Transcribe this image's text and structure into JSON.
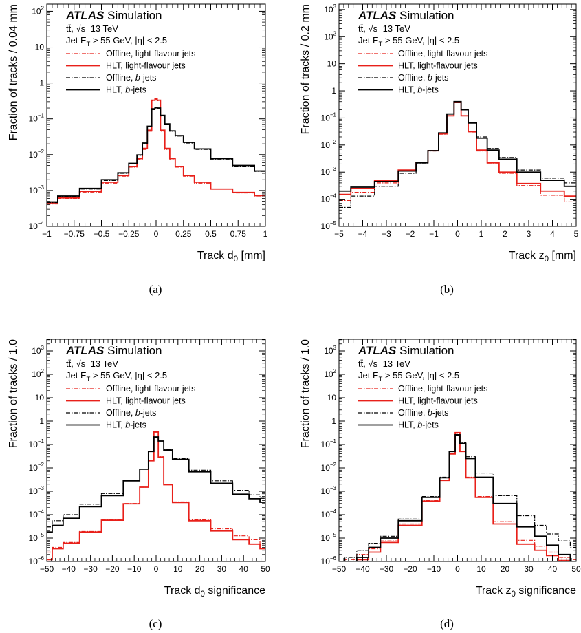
{
  "figure": {
    "colors": {
      "offline_light": "#e8201a",
      "hlt_light": "#e8201a",
      "offline_b": "#000000",
      "hlt_b": "#000000"
    },
    "legend_entries": [
      {
        "label": "Offline, light-flavour jets",
        "color": "#e8201a",
        "style": "dashdot"
      },
      {
        "label": "HLT, light-flavour jets",
        "color": "#e8201a",
        "style": "solid"
      },
      {
        "label": "Offline, b-jets",
        "color": "#000000",
        "style": "dashdot"
      },
      {
        "label": "HLT, b-jets",
        "color": "#000000",
        "style": "solid"
      }
    ],
    "atlas_label": "ATLAS",
    "atlas_suffix": "Simulation",
    "process_line": "tt̄, √s=13 TeV",
    "cut_line": "Jet E_T > 55 GeV, |η| < 2.5"
  },
  "chart_data": [
    {
      "type": "line",
      "caption": "(a)",
      "xlabel": "Track d_0 [mm]",
      "ylabel": "Fraction of tracks / 0.04 mm",
      "xlim": [
        -1,
        1
      ],
      "ylim_log10": [
        -4,
        2.2
      ],
      "xticks": [
        -1,
        -0.75,
        -0.5,
        -0.25,
        0,
        0.25,
        0.5,
        0.75,
        1
      ],
      "xticklabels": [
        "−1",
        "−0.75",
        "−0.5",
        "−0.25",
        "0",
        "0.25",
        "0.5",
        "0.75",
        "1"
      ],
      "yticks_log10": [
        -4,
        -3,
        -2,
        -1,
        0,
        1,
        2
      ],
      "x": [
        -1.0,
        -0.8,
        -0.6,
        -0.4,
        -0.3,
        -0.2,
        -0.15,
        -0.1,
        -0.06,
        -0.02,
        0.0,
        0.02,
        0.06,
        0.1,
        0.15,
        0.2,
        0.3,
        0.4,
        0.6,
        0.8,
        1.0
      ],
      "series": [
        {
          "name": "Offline, light-flavour jets",
          "values": [
            0.00042,
            0.0006,
            0.0009,
            0.0016,
            0.0025,
            0.0045,
            0.0075,
            0.014,
            0.045,
            0.32,
            0.35,
            0.32,
            0.045,
            0.014,
            0.0075,
            0.0045,
            0.0025,
            0.0016,
            0.0011,
            0.00085,
            0.0007
          ]
        },
        {
          "name": "HLT, light-flavour jets",
          "values": [
            0.00045,
            0.00062,
            0.00095,
            0.0017,
            0.0026,
            0.0047,
            0.0078,
            0.015,
            0.048,
            0.33,
            0.36,
            0.33,
            0.048,
            0.015,
            0.0078,
            0.0047,
            0.0026,
            0.0017,
            0.0011,
            0.00088,
            0.00072
          ]
        },
        {
          "name": "Offline, b-jets",
          "values": [
            0.00046,
            0.00068,
            0.0011,
            0.0019,
            0.003,
            0.0055,
            0.0095,
            0.02,
            0.06,
            0.18,
            0.2,
            0.19,
            0.12,
            0.07,
            0.045,
            0.033,
            0.021,
            0.014,
            0.0075,
            0.0048,
            0.0034
          ]
        },
        {
          "name": "HLT, b-jets",
          "values": [
            0.00048,
            0.0007,
            0.00115,
            0.002,
            0.0031,
            0.0057,
            0.0098,
            0.021,
            0.062,
            0.19,
            0.21,
            0.2,
            0.125,
            0.072,
            0.046,
            0.034,
            0.022,
            0.0145,
            0.0078,
            0.005,
            0.0035
          ]
        }
      ]
    },
    {
      "type": "line",
      "caption": "(b)",
      "xlabel": "Track z_0 [mm]",
      "ylabel": "Fraction of tracks / 0.2 mm",
      "xlim": [
        -5,
        5
      ],
      "ylim_log10": [
        -5,
        3.2
      ],
      "xticks": [
        -5,
        -4,
        -3,
        -2,
        -1,
        0,
        1,
        2,
        3,
        4,
        5
      ],
      "xticklabels": [
        "−5",
        "−4",
        "−3",
        "−2",
        "−1",
        "0",
        "1",
        "2",
        "3",
        "4",
        "5"
      ],
      "yticks_log10": [
        -5,
        -4,
        -3,
        -2,
        -1,
        0,
        1,
        2,
        3
      ],
      "x": [
        -5.0,
        -4.0,
        -3.0,
        -2.0,
        -1.5,
        -1.0,
        -0.6,
        -0.3,
        0.0,
        0.3,
        0.6,
        1.0,
        1.5,
        2.0,
        3.0,
        4.0,
        5.0
      ],
      "series": [
        {
          "name": "Offline, light-flavour jets",
          "values": [
            9e-05,
            0.00018,
            0.0004,
            0.0011,
            0.0022,
            0.006,
            0.025,
            0.12,
            0.38,
            0.12,
            0.03,
            0.006,
            0.002,
            0.0009,
            0.00032,
            0.00014,
            8e-05
          ]
        },
        {
          "name": "HLT, light-flavour jets",
          "values": [
            0.00015,
            0.00025,
            0.00048,
            0.0012,
            0.0023,
            0.0062,
            0.026,
            0.12,
            0.38,
            0.12,
            0.031,
            0.0065,
            0.0022,
            0.001,
            0.00038,
            0.0002,
            0.00013
          ]
        },
        {
          "name": "Offline, b-jets",
          "values": [
            5e-05,
            0.00013,
            0.0003,
            0.0009,
            0.002,
            0.006,
            0.028,
            0.14,
            0.4,
            0.2,
            0.07,
            0.02,
            0.0075,
            0.0035,
            0.0012,
            0.0006,
            0.0004
          ]
        },
        {
          "name": "HLT, b-jets",
          "values": [
            0.0002,
            0.00028,
            0.00045,
            0.0011,
            0.0022,
            0.0062,
            0.028,
            0.14,
            0.4,
            0.2,
            0.065,
            0.018,
            0.0065,
            0.003,
            0.001,
            0.0005,
            0.0003
          ]
        }
      ]
    },
    {
      "type": "line",
      "caption": "(c)",
      "xlabel": "Track d_0 significance",
      "ylabel": "Fraction of tracks / 1.0",
      "xlim": [
        -50,
        50
      ],
      "ylim_log10": [
        -6,
        3.5
      ],
      "xticks": [
        -50,
        -40,
        -30,
        -20,
        -10,
        0,
        10,
        20,
        30,
        40,
        50
      ],
      "xticklabels": [
        "−50",
        "−40",
        "−30",
        "−20",
        "−10",
        "0",
        "10",
        "20",
        "30",
        "40",
        "50"
      ],
      "yticks_log10": [
        -6,
        -5,
        -4,
        -3,
        -2,
        -1,
        0,
        1,
        2,
        3
      ],
      "x": [
        -50,
        -45,
        -40,
        -30,
        -20,
        -10,
        -5,
        -2,
        0,
        2,
        5,
        10,
        20,
        30,
        40,
        45,
        50
      ],
      "series": [
        {
          "name": "Offline, light-flavour jets",
          "values": [
            2.5e-06,
            4e-06,
            6.5e-06,
            1.9e-05,
            6e-05,
            0.0003,
            0.0015,
            0.02,
            0.35,
            0.03,
            0.002,
            0.00035,
            6e-05,
            2.5e-05,
            1.25e-05,
            8.5e-06,
            5.5e-06
          ]
        },
        {
          "name": "HLT, light-flavour jets",
          "values": [
            1.2e-06,
            3.5e-06,
            6e-06,
            1.8e-05,
            5.8e-05,
            0.00029,
            0.0015,
            0.02,
            0.34,
            0.029,
            0.0019,
            0.00033,
            5.5e-05,
            2e-05,
            8.5e-06,
            5.5e-06,
            3.5e-06
          ]
        },
        {
          "name": "Offline, b-jets",
          "values": [
            3e-05,
            5.5e-05,
            0.0001,
            0.00028,
            0.0008,
            0.003,
            0.009,
            0.05,
            0.2,
            0.14,
            0.06,
            0.025,
            0.008,
            0.0028,
            0.0011,
            0.0007,
            0.0005
          ]
        },
        {
          "name": "HLT, b-jets",
          "values": [
            1.8e-05,
            3.5e-05,
            7e-05,
            0.00022,
            0.00065,
            0.0028,
            0.0088,
            0.05,
            0.21,
            0.14,
            0.058,
            0.023,
            0.0068,
            0.0022,
            0.00075,
            0.00048,
            0.00034
          ]
        }
      ]
    },
    {
      "type": "line",
      "caption": "(d)",
      "xlabel": "Track z_0 significance",
      "ylabel": "Fraction of tracks / 1.0",
      "xlim": [
        -50,
        50
      ],
      "ylim_log10": [
        -6,
        3.5
      ],
      "xticks": [
        -50,
        -40,
        -30,
        -20,
        -10,
        0,
        10,
        20,
        30,
        40,
        50
      ],
      "xticklabels": [
        "−50",
        "−40",
        "−30",
        "−20",
        "−10",
        "0",
        "10",
        "20",
        "30",
        "40",
        "50"
      ],
      "yticks_log10": [
        -6,
        -5,
        -4,
        -3,
        -2,
        -1,
        0,
        1,
        2,
        3
      ],
      "x": [
        -50,
        -45,
        -40,
        -35,
        -30,
        -20,
        -10,
        -5,
        -2,
        0,
        2,
        5,
        10,
        20,
        30,
        35,
        40,
        45,
        50
      ],
      "series": [
        {
          "name": "Offline, light-flavour jets",
          "values": [
            8e-07,
            1.2e-06,
            2e-06,
            3.5e-06,
            7.5e-06,
            4e-05,
            0.0004,
            0.003,
            0.04,
            0.3,
            0.05,
            0.004,
            0.0006,
            5e-05,
            8e-06,
            4.5e-06,
            2.5e-06,
            1.5e-06,
            1.2e-06
          ]
        },
        {
          "name": "HLT, light-flavour jets",
          "values": [
            5e-07,
            8e-07,
            1.2e-06,
            2.5e-06,
            6.5e-06,
            3.5e-05,
            0.00038,
            0.0029,
            0.039,
            0.32,
            0.05,
            0.0038,
            0.00055,
            4e-05,
            5.5e-06,
            3e-06,
            1.8e-06,
            1.1e-06,
            7e-07
          ]
        },
        {
          "name": "Offline, b-jets",
          "values": [
            8e-07,
            1.5e-06,
            3e-06,
            6e-06,
            1.2e-05,
            6.5e-05,
            0.0006,
            0.004,
            0.05,
            0.25,
            0.12,
            0.03,
            0.006,
            0.00065,
            9e-05,
            3.5e-05,
            1.5e-05,
            7.5e-06,
            4e-06
          ]
        },
        {
          "name": "HLT, b-jets",
          "values": [
            6e-07,
            9e-07,
            1.5e-06,
            4e-06,
            1e-05,
            5.5e-05,
            0.00055,
            0.0038,
            0.05,
            0.26,
            0.11,
            0.025,
            0.004,
            0.0003,
            3e-05,
            1.2e-05,
            5e-06,
            2e-06,
            1e-06
          ]
        }
      ]
    }
  ]
}
